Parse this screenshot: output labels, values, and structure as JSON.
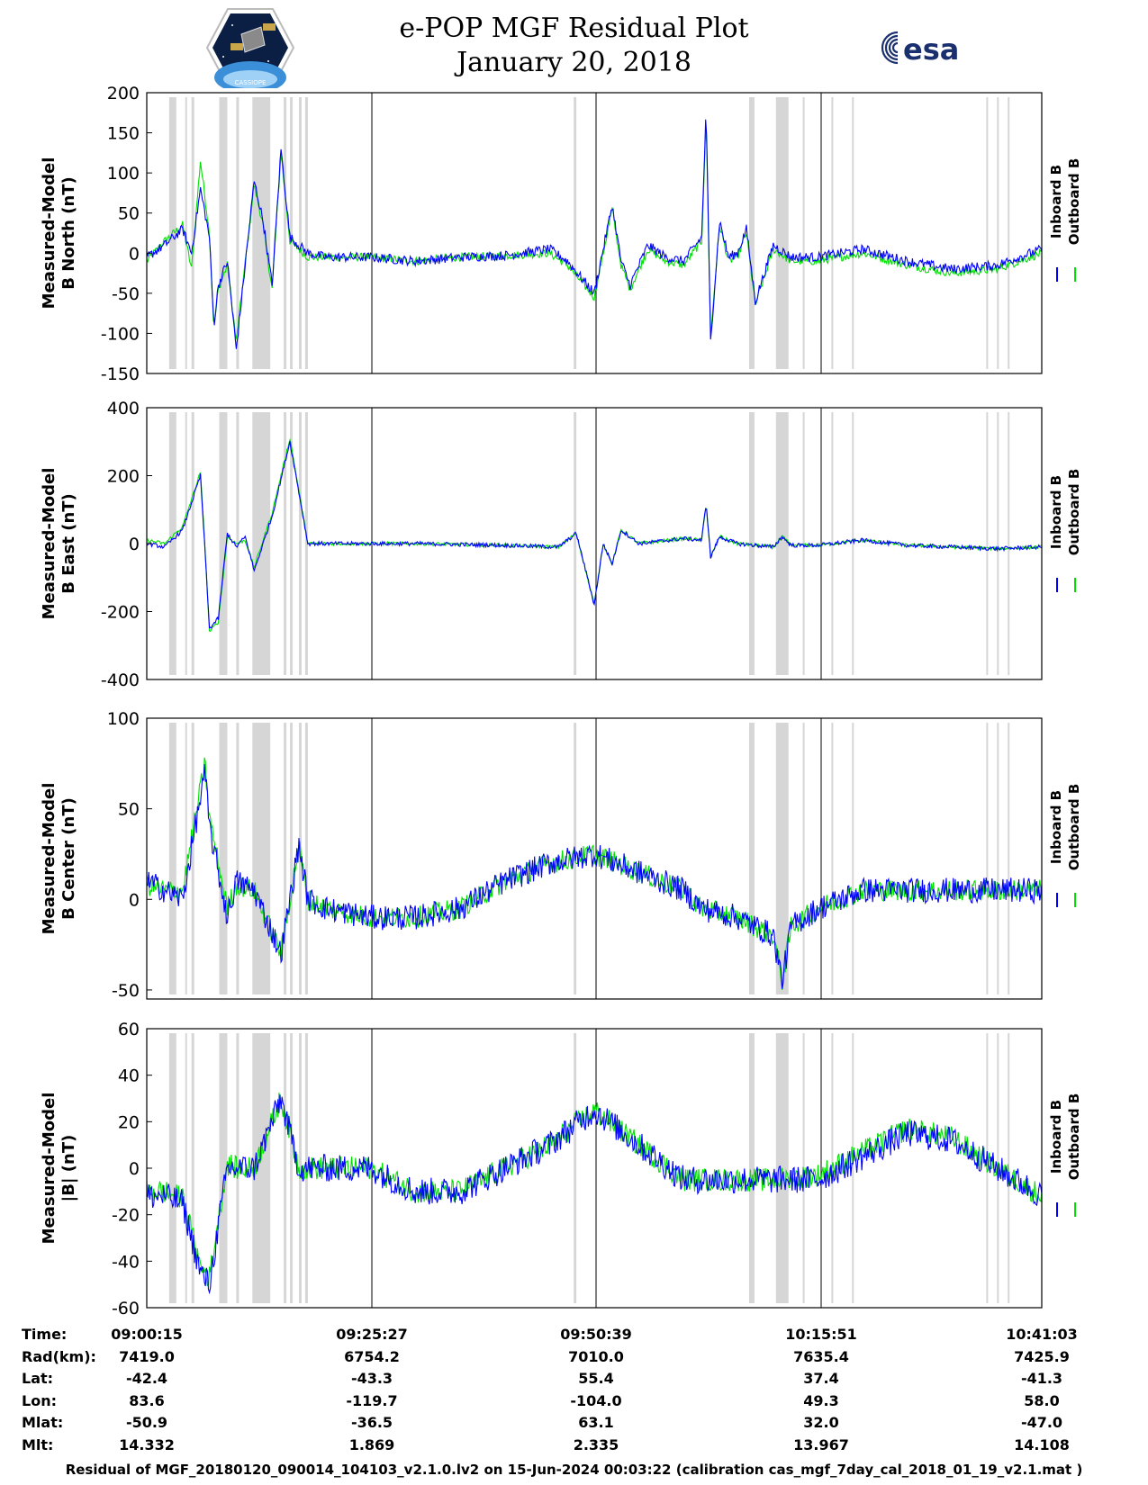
{
  "header": {
    "title": "e-POP MGF Residual Plot",
    "date": "January 20, 2018",
    "logo_left_caption": "CASSIOPE",
    "logo_right_text": "esa"
  },
  "colors": {
    "inboard": "#0000ff",
    "outboard": "#00e000",
    "shade": "#d6d6d6",
    "axis": "#000000"
  },
  "chart_data": [
    {
      "type": "line",
      "ylabel": [
        "Measured-Model",
        "B North (nT)"
      ],
      "ylim": [
        -150,
        200
      ],
      "yticks": [
        -150,
        -100,
        -50,
        0,
        50,
        100,
        150,
        200
      ],
      "series": [
        {
          "name": "Inboard B",
          "color": "#0000ff",
          "x": [
            0,
            0.02,
            0.04,
            0.05,
            0.06,
            0.07,
            0.075,
            0.08,
            0.09,
            0.1,
            0.12,
            0.13,
            0.14,
            0.15,
            0.16,
            0.18,
            0.2,
            0.25,
            0.3,
            0.35,
            0.4,
            0.45,
            0.47,
            0.5,
            0.52,
            0.53,
            0.54,
            0.56,
            0.58,
            0.6,
            0.62,
            0.625,
            0.63,
            0.64,
            0.65,
            0.66,
            0.67,
            0.68,
            0.7,
            0.72,
            0.75,
            0.8,
            0.85,
            0.9,
            0.95,
            1.0
          ],
          "y": [
            -5,
            10,
            30,
            0,
            80,
            20,
            -90,
            -40,
            -10,
            -120,
            90,
            40,
            -40,
            130,
            20,
            0,
            -5,
            -5,
            -10,
            -5,
            -3,
            5,
            -10,
            -50,
            60,
            -10,
            -40,
            10,
            -5,
            -10,
            20,
            180,
            -110,
            40,
            -5,
            0,
            30,
            -60,
            10,
            -5,
            -5,
            5,
            -10,
            -20,
            -15,
            5
          ]
        },
        {
          "name": "Outboard B",
          "color": "#00e000",
          "x": [
            0,
            0.02,
            0.04,
            0.05,
            0.06,
            0.07,
            0.075,
            0.08,
            0.09,
            0.1,
            0.12,
            0.13,
            0.14,
            0.15,
            0.16,
            0.18,
            0.2,
            0.25,
            0.3,
            0.35,
            0.4,
            0.45,
            0.47,
            0.5,
            0.52,
            0.53,
            0.54,
            0.56,
            0.58,
            0.6,
            0.62,
            0.625,
            0.63,
            0.64,
            0.65,
            0.66,
            0.67,
            0.68,
            0.7,
            0.72,
            0.75,
            0.8,
            0.85,
            0.9,
            0.95,
            1.0
          ],
          "y": [
            -10,
            15,
            35,
            -20,
            115,
            25,
            -95,
            -45,
            -15,
            -110,
            85,
            35,
            -45,
            125,
            15,
            -5,
            -5,
            -5,
            -10,
            -5,
            -3,
            0,
            -15,
            -55,
            55,
            -15,
            -45,
            5,
            -10,
            -15,
            15,
            170,
            -105,
            35,
            -10,
            -5,
            25,
            -65,
            5,
            -10,
            -10,
            0,
            -15,
            -25,
            -20,
            0
          ]
        }
      ]
    },
    {
      "type": "line",
      "ylabel": [
        "Measured-Model",
        "B East (nT)"
      ],
      "ylim": [
        -400,
        400
      ],
      "yticks": [
        -400,
        -200,
        0,
        200,
        400
      ],
      "series": [
        {
          "name": "Inboard B",
          "color": "#0000ff",
          "x": [
            0,
            0.02,
            0.04,
            0.06,
            0.065,
            0.07,
            0.08,
            0.09,
            0.1,
            0.11,
            0.12,
            0.14,
            0.16,
            0.18,
            0.2,
            0.3,
            0.4,
            0.46,
            0.48,
            0.5,
            0.51,
            0.52,
            0.53,
            0.55,
            0.6,
            0.62,
            0.625,
            0.63,
            0.64,
            0.66,
            0.7,
            0.71,
            0.72,
            0.75,
            0.8,
            0.85,
            0.9,
            0.95,
            1.0
          ],
          "y": [
            0,
            -10,
            40,
            200,
            -20,
            -250,
            -220,
            30,
            -10,
            20,
            -80,
            80,
            300,
            0,
            0,
            0,
            -5,
            -10,
            30,
            -180,
            0,
            -60,
            40,
            0,
            15,
            10,
            120,
            -40,
            20,
            0,
            -10,
            20,
            -5,
            -5,
            10,
            -5,
            -10,
            -15,
            -10
          ]
        },
        {
          "name": "Outboard B",
          "color": "#00e000",
          "x": [
            0,
            0.02,
            0.04,
            0.06,
            0.065,
            0.07,
            0.08,
            0.09,
            0.1,
            0.11,
            0.12,
            0.14,
            0.16,
            0.18,
            0.2,
            0.3,
            0.4,
            0.46,
            0.48,
            0.5,
            0.51,
            0.52,
            0.53,
            0.55,
            0.6,
            0.62,
            0.625,
            0.63,
            0.64,
            0.66,
            0.7,
            0.71,
            0.72,
            0.75,
            0.8,
            0.85,
            0.9,
            0.95,
            1.0
          ],
          "y": [
            10,
            0,
            50,
            210,
            -10,
            -260,
            -230,
            20,
            0,
            10,
            -70,
            90,
            310,
            0,
            0,
            0,
            -5,
            -10,
            30,
            -180,
            0,
            -60,
            40,
            0,
            15,
            10,
            120,
            -40,
            20,
            0,
            -10,
            20,
            -5,
            -5,
            10,
            -5,
            -10,
            -15,
            -10
          ]
        }
      ]
    },
    {
      "type": "line",
      "ylabel": [
        "Measured-Model",
        "B Center (nT)"
      ],
      "ylim": [
        -55,
        100
      ],
      "yticks": [
        -50,
        0,
        50,
        100
      ],
      "series": [
        {
          "name": "Inboard B",
          "color": "#0000ff",
          "x": [
            0,
            0.02,
            0.04,
            0.065,
            0.07,
            0.09,
            0.1,
            0.12,
            0.15,
            0.17,
            0.18,
            0.2,
            0.25,
            0.3,
            0.35,
            0.4,
            0.45,
            0.5,
            0.55,
            0.6,
            0.62,
            0.66,
            0.7,
            0.71,
            0.72,
            0.75,
            0.8,
            0.85,
            0.9,
            0.95,
            1.0
          ],
          "y": [
            10,
            5,
            0,
            70,
            40,
            -10,
            10,
            5,
            -30,
            30,
            0,
            -5,
            -10,
            -10,
            -5,
            10,
            20,
            25,
            15,
            5,
            -5,
            -10,
            -20,
            -45,
            -15,
            -5,
            5,
            5,
            5,
            5,
            5
          ]
        },
        {
          "name": "Outboard B",
          "color": "#00e000",
          "x": [
            0,
            0.02,
            0.04,
            0.065,
            0.07,
            0.09,
            0.1,
            0.12,
            0.15,
            0.17,
            0.18,
            0.2,
            0.25,
            0.3,
            0.35,
            0.4,
            0.45,
            0.5,
            0.55,
            0.6,
            0.62,
            0.66,
            0.7,
            0.71,
            0.72,
            0.75,
            0.8,
            0.85,
            0.9,
            0.95,
            1.0
          ],
          "y": [
            8,
            5,
            5,
            75,
            45,
            -5,
            8,
            5,
            -30,
            30,
            0,
            -5,
            -10,
            -10,
            -5,
            10,
            20,
            25,
            15,
            5,
            -5,
            -10,
            -20,
            -45,
            -15,
            -5,
            5,
            5,
            5,
            5,
            5
          ]
        }
      ]
    },
    {
      "type": "line",
      "ylabel": [
        "Measured-Model",
        "|B| (nT)"
      ],
      "ylim": [
        -60,
        60
      ],
      "yticks": [
        -60,
        -40,
        -20,
        0,
        20,
        40,
        60
      ],
      "series": [
        {
          "name": "Inboard B",
          "color": "#0000ff",
          "x": [
            0,
            0.02,
            0.04,
            0.06,
            0.07,
            0.08,
            0.09,
            0.1,
            0.12,
            0.15,
            0.17,
            0.2,
            0.25,
            0.3,
            0.35,
            0.4,
            0.45,
            0.5,
            0.55,
            0.6,
            0.65,
            0.7,
            0.75,
            0.8,
            0.85,
            0.9,
            0.95,
            1.0
          ],
          "y": [
            -12,
            -12,
            -15,
            -45,
            -50,
            -25,
            0,
            0,
            0,
            30,
            0,
            0,
            0,
            -10,
            -10,
            0,
            10,
            25,
            10,
            -5,
            -5,
            -5,
            -5,
            5,
            15,
            12,
            0,
            -12
          ]
        },
        {
          "name": "Outboard B",
          "color": "#00e000",
          "x": [
            0,
            0.02,
            0.04,
            0.06,
            0.07,
            0.08,
            0.09,
            0.1,
            0.12,
            0.15,
            0.17,
            0.2,
            0.25,
            0.3,
            0.35,
            0.4,
            0.45,
            0.5,
            0.55,
            0.6,
            0.65,
            0.7,
            0.75,
            0.8,
            0.85,
            0.9,
            0.95,
            1.0
          ],
          "y": [
            -10,
            -10,
            -13,
            -42,
            -47,
            -22,
            2,
            0,
            0,
            30,
            0,
            0,
            0,
            -10,
            -10,
            0,
            10,
            25,
            10,
            -5,
            -5,
            -5,
            -3,
            7,
            17,
            13,
            0,
            -12
          ]
        }
      ]
    }
  ],
  "shaded_intervals": [
    [
      0.025,
      0.033
    ],
    [
      0.043,
      0.045
    ],
    [
      0.05,
      0.053
    ],
    [
      0.081,
      0.09
    ],
    [
      0.1,
      0.103
    ],
    [
      0.118,
      0.138
    ],
    [
      0.153,
      0.156
    ],
    [
      0.16,
      0.163
    ],
    [
      0.17,
      0.173
    ],
    [
      0.177,
      0.18
    ],
    [
      0.477,
      0.48
    ],
    [
      0.673,
      0.679
    ],
    [
      0.703,
      0.717
    ],
    [
      0.733,
      0.735
    ],
    [
      0.765,
      0.767
    ],
    [
      0.788,
      0.79
    ],
    [
      0.938,
      0.94
    ],
    [
      0.95,
      0.952
    ],
    [
      0.962,
      0.964
    ]
  ],
  "legend": [
    "Inboard B",
    "Outboard B"
  ],
  "info_table": {
    "labels": [
      "Time:",
      "Rad(km):",
      "Lat:",
      "Lon:",
      "Mlat:",
      "Mlt:"
    ],
    "columns": [
      [
        "09:00:15",
        "7419.0",
        "-42.4",
        "83.6",
        "-50.9",
        "14.332"
      ],
      [
        "09:25:27",
        "6754.2",
        "-43.3",
        "-119.7",
        "-36.5",
        "1.869"
      ],
      [
        "09:50:39",
        "7010.0",
        "55.4",
        "-104.0",
        "63.1",
        "2.335"
      ],
      [
        "10:15:51",
        "7635.4",
        "37.4",
        "49.3",
        "32.0",
        "13.967"
      ],
      [
        "10:41:03",
        "7425.9",
        "-41.3",
        "58.0",
        "-47.0",
        "14.108"
      ]
    ]
  },
  "footer": "Residual of MGF_20180120_090014_104103_v2.1.0.lv2 on 15-Jun-2024 00:03:22 (calibration cas_mgf_7day_cal_2018_01_19_v2.1.mat )"
}
